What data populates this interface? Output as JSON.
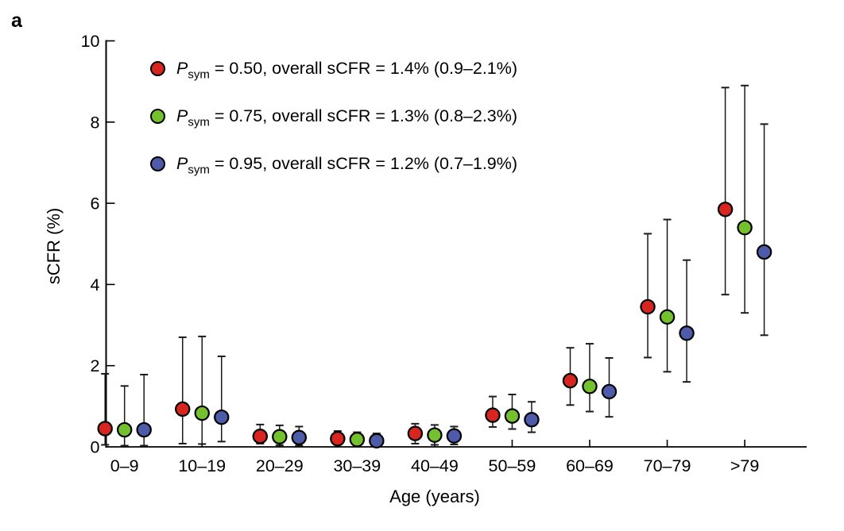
{
  "panel_label": "a",
  "colors": {
    "red": "#d8251f",
    "green": "#74c12e",
    "blue": "#4d5ba9",
    "axis": "#000000",
    "errorbar": "#1a1a1a",
    "marker_stroke": "#000000",
    "background": "#ffffff"
  },
  "chart_data": {
    "type": "scatter",
    "title": "",
    "xlabel": "Age (years)",
    "ylabel": "sCFR (%)",
    "ylim": [
      0,
      10
    ],
    "yticks": [
      0,
      2,
      4,
      6,
      8,
      10
    ],
    "grid": false,
    "legend_position": "top-left-inside",
    "error_bars": true,
    "categories": [
      "0–9",
      "10–19",
      "20–29",
      "30–39",
      "40–49",
      "50–59",
      "60–69",
      "70–79",
      ">79"
    ],
    "series": [
      {
        "name": "Psym = 0.50",
        "legend_label": {
          "var": "P",
          "sub": "sym",
          "rest": " = 0.50, overall sCFR = 1.4% (0.9–2.1%)"
        },
        "color_key": "red",
        "color": "#d8251f",
        "values": [
          0.45,
          0.93,
          0.26,
          0.2,
          0.33,
          0.78,
          1.63,
          3.45,
          5.85
        ],
        "lower": [
          0.05,
          0.08,
          0.08,
          0.05,
          0.08,
          0.49,
          1.03,
          2.2,
          3.75
        ],
        "upper": [
          1.8,
          2.7,
          0.55,
          0.39,
          0.57,
          1.24,
          2.44,
          5.25,
          8.85
        ]
      },
      {
        "name": "Psym = 0.75",
        "legend_label": {
          "var": "P",
          "sub": "sym",
          "rest": " = 0.75, overall sCFR = 1.3% (0.8–2.3%)"
        },
        "color_key": "green",
        "color": "#74c12e",
        "values": [
          0.42,
          0.83,
          0.25,
          0.18,
          0.29,
          0.76,
          1.49,
          3.2,
          5.4
        ],
        "lower": [
          0.03,
          0.07,
          0.04,
          0.04,
          0.05,
          0.44,
          0.87,
          1.85,
          3.3
        ],
        "upper": [
          1.5,
          2.72,
          0.53,
          0.36,
          0.54,
          1.29,
          2.54,
          5.6,
          8.9
        ]
      },
      {
        "name": "Psym = 0.95",
        "legend_label": {
          "var": "P",
          "sub": "sym",
          "rest": " = 0.95, overall sCFR = 1.2% (0.7–1.9%)"
        },
        "color_key": "blue",
        "color": "#4d5ba9",
        "values": [
          0.42,
          0.73,
          0.23,
          0.15,
          0.27,
          0.67,
          1.36,
          2.8,
          4.8
        ],
        "lower": [
          0.03,
          0.13,
          0.03,
          0.03,
          0.06,
          0.36,
          0.74,
          1.6,
          2.75
        ],
        "upper": [
          1.78,
          2.23,
          0.5,
          0.33,
          0.5,
          1.11,
          2.19,
          4.6,
          7.95
        ]
      }
    ]
  }
}
